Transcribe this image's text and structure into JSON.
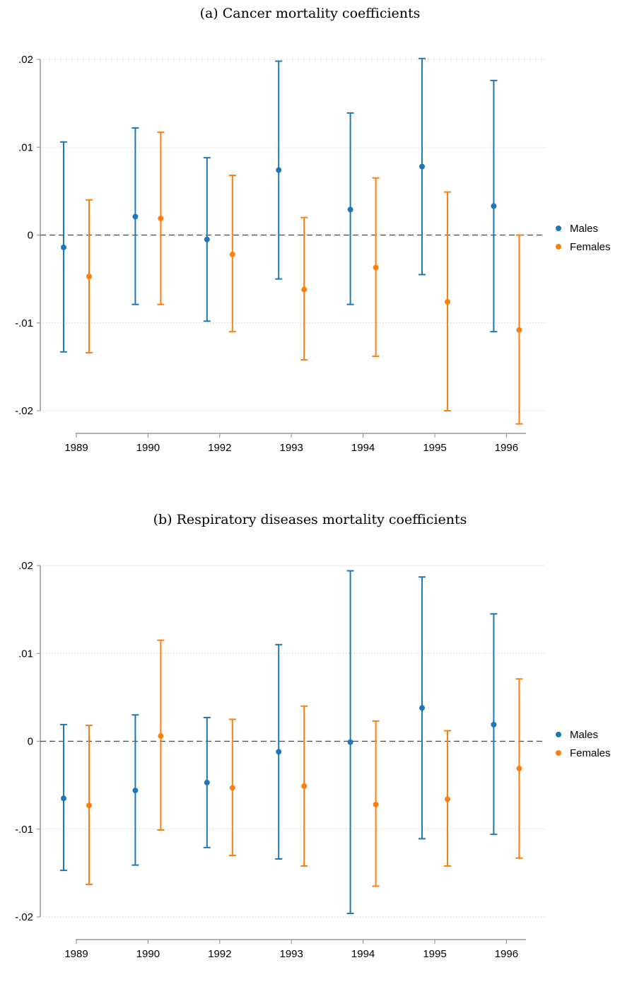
{
  "colors": {
    "males": "#1f77b4",
    "females": "#ff7f0e",
    "axis": "#999999",
    "grid": "#bbbbbb",
    "zero": "#444444"
  },
  "chart_data": [
    {
      "type": "scatter",
      "title": "(a) Cancer mortality coefficients",
      "categories": [
        "1989",
        "1990",
        "1992",
        "1993",
        "1994",
        "1995",
        "1996"
      ],
      "ylim": [
        -0.02,
        0.02
      ],
      "yticks": [
        0.02,
        0.01,
        0,
        -0.01,
        -0.02
      ],
      "ytick_labels": [
        ".02",
        ".01",
        "0",
        "-.01",
        "-.02"
      ],
      "grid": true,
      "legend_position": "right",
      "series": [
        {
          "name": "Males",
          "values": [
            -0.0014,
            0.0021,
            -0.0005,
            0.0074,
            0.0029,
            0.0078,
            0.0033
          ],
          "lower": [
            -0.0133,
            -0.0079,
            -0.0098,
            -0.005,
            -0.0079,
            -0.0045,
            -0.011
          ],
          "upper": [
            0.0106,
            0.0122,
            0.0088,
            0.0198,
            0.0139,
            0.0201,
            0.0176
          ]
        },
        {
          "name": "Females",
          "values": [
            -0.0047,
            0.0019,
            -0.0022,
            -0.0062,
            -0.0037,
            -0.0076,
            -0.0108
          ],
          "lower": [
            -0.0134,
            -0.0079,
            -0.011,
            -0.0142,
            -0.0138,
            -0.02,
            -0.0215
          ],
          "upper": [
            0.004,
            0.0117,
            0.0068,
            0.002,
            0.0065,
            0.0049,
            0.0
          ]
        }
      ]
    },
    {
      "type": "scatter",
      "title": "(b) Respiratory diseases mortality coefficients",
      "categories": [
        "1989",
        "1990",
        "1992",
        "1993",
        "1994",
        "1995",
        "1996"
      ],
      "ylim": [
        -0.02,
        0.02
      ],
      "yticks": [
        0.02,
        0.01,
        0,
        -0.01,
        -0.02
      ],
      "ytick_labels": [
        ".02",
        ".01",
        "0",
        "-.01",
        "-.02"
      ],
      "grid": true,
      "legend_position": "right",
      "series": [
        {
          "name": "Males",
          "values": [
            -0.0065,
            -0.0056,
            -0.0047,
            -0.0012,
            -0.0001,
            0.0038,
            0.0019
          ],
          "lower": [
            -0.0147,
            -0.0141,
            -0.0121,
            -0.0134,
            -0.0196,
            -0.0111,
            -0.0106
          ],
          "upper": [
            0.0019,
            0.003,
            0.0027,
            0.011,
            0.0194,
            0.0187,
            0.0145
          ]
        },
        {
          "name": "Females",
          "values": [
            -0.0073,
            0.0006,
            -0.0053,
            -0.0051,
            -0.0072,
            -0.0066,
            -0.0031
          ],
          "lower": [
            -0.0163,
            -0.0101,
            -0.013,
            -0.0142,
            -0.0165,
            -0.0142,
            -0.0133
          ],
          "upper": [
            0.0018,
            0.0115,
            0.0025,
            0.004,
            0.0023,
            0.0012,
            0.0071
          ]
        }
      ]
    }
  ]
}
